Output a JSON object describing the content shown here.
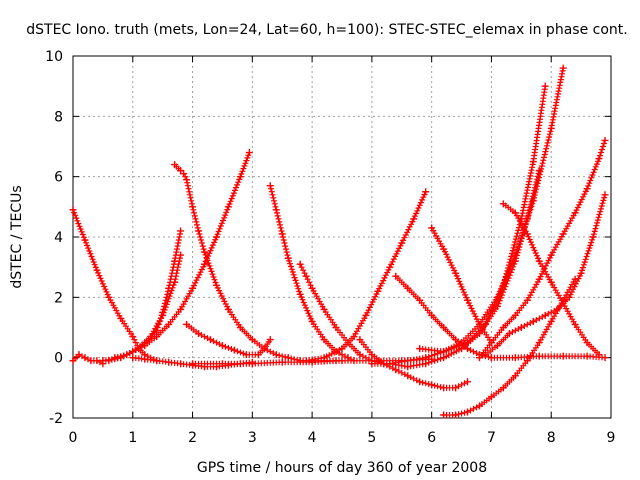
{
  "chart_data": {
    "type": "scatter",
    "title": "dSTEC Iono. truth (mets, Lon=24, Lat=60, h=100): STEC-STEC_elemax in phase cont.",
    "xlabel": "GPS time / hours of day 360 of year 2008",
    "ylabel": "dSTEC  / TECUs",
    "xlim": [
      0,
      9
    ],
    "ylim": [
      -2,
      10
    ],
    "x_ticks": [
      "0",
      "1",
      "2",
      "3",
      "4",
      "5",
      "6",
      "7",
      "8",
      "9"
    ],
    "y_ticks": [
      "-2",
      "0",
      "2",
      "4",
      "6",
      "8",
      "10"
    ],
    "grid": true,
    "marker": "+",
    "color": "#ff0000",
    "series": [
      {
        "x": [
          0.0,
          0.2,
          0.4,
          0.6,
          0.8,
          1.0,
          1.1,
          1.2,
          1.4
        ],
        "y": [
          4.9,
          3.9,
          2.9,
          2.0,
          1.3,
          0.7,
          0.3,
          0.1,
          -0.1
        ]
      },
      {
        "x": [
          0.0,
          0.1,
          0.2,
          0.3,
          0.4,
          0.5
        ],
        "y": [
          -0.1,
          0.1,
          0.0,
          -0.1,
          -0.1,
          -0.2
        ]
      },
      {
        "x": [
          0.5,
          0.8,
          1.0,
          1.2,
          1.4,
          1.5,
          1.6,
          1.7,
          1.8
        ],
        "y": [
          -0.1,
          0.0,
          0.2,
          0.5,
          0.9,
          1.5,
          2.3,
          3.2,
          4.2
        ]
      },
      {
        "x": [
          0.7,
          0.9,
          1.1,
          1.3,
          1.5,
          1.7,
          1.8
        ],
        "y": [
          0.0,
          0.1,
          0.3,
          0.7,
          1.4,
          2.5,
          3.4
        ]
      },
      {
        "x": [
          0.6,
          0.8,
          1.0,
          1.2,
          1.4,
          1.6,
          1.8,
          2.0,
          2.2,
          2.4,
          2.6,
          2.8,
          2.95
        ],
        "y": [
          -0.1,
          0.0,
          0.2,
          0.4,
          0.7,
          1.1,
          1.6,
          2.3,
          3.1,
          4.0,
          5.0,
          6.0,
          6.8
        ]
      },
      {
        "x": [
          1.0,
          1.2,
          1.4,
          1.6,
          1.8,
          2.0,
          2.2,
          2.4,
          2.6,
          2.8,
          3.0
        ],
        "y": [
          0.0,
          -0.05,
          -0.1,
          -0.15,
          -0.2,
          -0.25,
          -0.3,
          -0.3,
          -0.25,
          -0.2,
          -0.15
        ]
      },
      {
        "x": [
          1.7,
          1.8,
          1.85,
          1.9,
          2.0,
          2.1,
          2.2,
          2.4,
          2.6,
          2.8,
          3.0,
          3.2,
          3.4,
          3.6,
          3.8,
          4.0,
          4.2,
          4.4
        ],
        "y": [
          6.4,
          6.2,
          6.1,
          5.9,
          5.0,
          4.2,
          3.5,
          2.4,
          1.6,
          1.0,
          0.6,
          0.3,
          0.1,
          0.0,
          -0.1,
          -0.1,
          -0.1,
          -0.1
        ]
      },
      {
        "x": [
          1.9,
          2.1,
          2.3,
          2.5,
          2.7,
          2.9,
          3.1,
          3.2,
          3.3
        ],
        "y": [
          1.1,
          0.8,
          0.6,
          0.4,
          0.25,
          0.1,
          0.1,
          0.3,
          0.6
        ]
      },
      {
        "x": [
          3.3,
          3.4,
          3.5,
          3.6,
          3.8,
          4.0,
          4.2,
          4.4,
          4.6,
          4.7
        ],
        "y": [
          5.7,
          4.9,
          4.1,
          3.3,
          2.1,
          1.2,
          0.6,
          0.2,
          0.0,
          -0.1
        ]
      },
      {
        "x": [
          3.8,
          3.9,
          4.0,
          4.2,
          4.4,
          4.6,
          4.8,
          5.0,
          5.2
        ],
        "y": [
          3.1,
          2.7,
          2.3,
          1.6,
          1.0,
          0.5,
          0.1,
          -0.1,
          -0.2
        ]
      },
      {
        "x": [
          2.0,
          2.5,
          3.0,
          3.5,
          4.0,
          4.5,
          5.0,
          5.5,
          6.0
        ],
        "y": [
          -0.2,
          -0.2,
          -0.2,
          -0.15,
          -0.15,
          -0.1,
          -0.1,
          -0.1,
          -0.05
        ]
      },
      {
        "x": [
          3.9,
          4.2,
          4.5,
          4.7,
          4.9,
          5.1,
          5.3,
          5.5,
          5.7,
          5.9
        ],
        "y": [
          -0.1,
          0.0,
          0.3,
          0.7,
          1.4,
          2.2,
          3.0,
          3.8,
          4.6,
          5.5
        ]
      },
      {
        "x": [
          4.8,
          5.0,
          5.2,
          5.4,
          5.6,
          5.8,
          6.0,
          6.2,
          6.4,
          6.6
        ],
        "y": [
          0.6,
          0.1,
          -0.2,
          -0.4,
          -0.6,
          -0.8,
          -0.9,
          -1.0,
          -1.0,
          -0.8
        ]
      },
      {
        "x": [
          5.0,
          5.3,
          5.6,
          5.9,
          6.2,
          6.5,
          6.8,
          7.1,
          7.4,
          7.7,
          8.0,
          8.2
        ],
        "y": [
          -0.2,
          -0.2,
          -0.1,
          0.0,
          0.2,
          0.5,
          1.1,
          2.0,
          3.4,
          5.2,
          7.6,
          9.6
        ]
      },
      {
        "x": [
          5.3,
          5.6,
          5.9,
          6.2,
          6.5,
          6.8,
          7.1,
          7.4,
          7.6,
          7.8
        ],
        "y": [
          -0.2,
          -0.3,
          -0.2,
          0.0,
          0.3,
          0.8,
          1.7,
          3.2,
          4.6,
          6.2
        ]
      },
      {
        "x": [
          5.8,
          6.2,
          6.6,
          6.9,
          7.2,
          7.5,
          7.7,
          7.9
        ],
        "y": [
          0.3,
          0.2,
          0.5,
          1.1,
          2.4,
          4.6,
          6.5,
          9.0
        ]
      },
      {
        "x": [
          5.4,
          5.6,
          5.8,
          6.0,
          6.2,
          6.4,
          6.6,
          6.8,
          7.0
        ],
        "y": [
          2.7,
          2.3,
          1.9,
          1.4,
          1.0,
          0.6,
          0.3,
          0.1,
          0.0
        ]
      },
      {
        "x": [
          6.0,
          6.2,
          6.4,
          6.6,
          6.8,
          7.0
        ],
        "y": [
          4.3,
          3.6,
          2.8,
          1.9,
          1.1,
          0.5
        ]
      },
      {
        "x": [
          7.0,
          7.4,
          7.8,
          8.2,
          8.6,
          8.9
        ],
        "y": [
          0.0,
          0.0,
          0.05,
          0.05,
          0.05,
          0.0
        ]
      },
      {
        "x": [
          7.2,
          7.4,
          7.6,
          7.8,
          8.0,
          8.2,
          8.4,
          8.6,
          8.8
        ],
        "y": [
          5.1,
          4.8,
          4.1,
          3.2,
          2.5,
          1.8,
          1.1,
          0.5,
          0.1
        ]
      },
      {
        "x": [
          6.8,
          7.0,
          7.2,
          7.4,
          7.6,
          7.8,
          8.0,
          8.2,
          8.4,
          8.6,
          8.8,
          8.9
        ],
        "y": [
          0.0,
          0.5,
          1.0,
          1.4,
          1.9,
          2.6,
          3.4,
          4.1,
          4.8,
          5.6,
          6.6,
          7.2
        ]
      },
      {
        "x": [
          6.9,
          7.1,
          7.3,
          7.5,
          7.7,
          7.9,
          8.1,
          8.3,
          8.5,
          8.7,
          8.9
        ],
        "y": [
          0.1,
          0.4,
          0.8,
          1.0,
          1.2,
          1.4,
          1.6,
          2.0,
          2.8,
          4.0,
          5.4
        ]
      },
      {
        "x": [
          6.2,
          6.4,
          6.6,
          6.8,
          7.0,
          7.2,
          7.4,
          7.6,
          7.8,
          8.0,
          8.2,
          8.4
        ],
        "y": [
          -1.9,
          -1.9,
          -1.8,
          -1.6,
          -1.3,
          -1.0,
          -0.6,
          -0.1,
          0.5,
          1.2,
          1.9,
          2.6
        ]
      }
    ]
  }
}
